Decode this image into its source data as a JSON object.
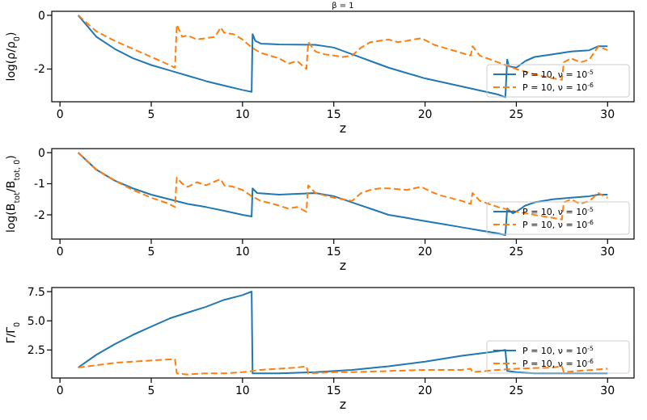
{
  "chart_data": [
    {
      "type": "line",
      "title": "β = 1",
      "xlabel": "z",
      "ylabel": "log(ρ/ρ$_{0}$)",
      "xlim": [
        -0.45,
        31.45
      ],
      "xticks": [
        0,
        5,
        10,
        15,
        20,
        25,
        30
      ],
      "ylim": [
        -3.22,
        0.15
      ],
      "yticks": [
        -2,
        0
      ],
      "legend": "lower right",
      "series": [
        {
          "name": "P = 10, ν = 10$^{-5}$",
          "color": "#1f77b4",
          "line_style": "solid",
          "x": [
            1,
            2,
            3,
            4,
            5,
            6,
            7,
            8,
            9,
            10,
            10.5,
            10.55,
            10.7,
            11,
            12,
            14,
            15,
            16,
            17,
            18,
            19,
            20,
            21,
            22,
            23,
            24,
            24.4,
            24.5,
            24.6,
            25,
            25.5,
            26,
            27,
            28,
            29,
            29.5,
            30
          ],
          "values": [
            0,
            -0.8,
            -1.25,
            -1.6,
            -1.85,
            -2.05,
            -2.25,
            -2.45,
            -2.62,
            -2.78,
            -2.85,
            -0.7,
            -0.95,
            -1.05,
            -1.08,
            -1.1,
            -1.2,
            -1.45,
            -1.7,
            -1.95,
            -2.15,
            -2.35,
            -2.5,
            -2.65,
            -2.8,
            -2.95,
            -3.05,
            -1.65,
            -1.9,
            -1.95,
            -1.7,
            -1.55,
            -1.45,
            -1.35,
            -1.3,
            -1.15,
            -1.15
          ]
        },
        {
          "name": "P = 10, ν = 10$^{-6}$",
          "color": "#ff7f0e",
          "line_style": "dashed",
          "x": [
            1,
            2,
            3,
            4,
            5,
            6,
            6.3,
            6.4,
            6.7,
            7,
            7.5,
            8,
            8.5,
            8.8,
            9,
            9.5,
            10,
            10.5,
            11,
            12,
            12.5,
            13,
            13.5,
            13.6,
            14,
            14.5,
            15,
            15.5,
            16,
            16.5,
            17,
            17.5,
            18,
            18.5,
            19,
            19.8,
            20.5,
            21,
            22,
            22.5,
            22.6,
            23,
            24,
            25,
            26,
            27,
            27.5,
            27.6,
            28,
            28.5,
            29,
            29.5,
            30
          ],
          "values": [
            0,
            -0.6,
            -0.95,
            -1.25,
            -1.55,
            -1.85,
            -1.95,
            -0.35,
            -0.8,
            -0.75,
            -0.9,
            -0.85,
            -0.8,
            -0.45,
            -0.65,
            -0.7,
            -0.9,
            -1.2,
            -1.4,
            -1.6,
            -1.8,
            -1.7,
            -2.0,
            -1.0,
            -1.35,
            -1.45,
            -1.5,
            -1.55,
            -1.5,
            -1.2,
            -1.0,
            -0.95,
            -0.9,
            -1.0,
            -0.95,
            -0.85,
            -1.1,
            -1.2,
            -1.4,
            -1.5,
            -1.15,
            -1.5,
            -1.75,
            -2.0,
            -2.2,
            -2.35,
            -2.4,
            -1.75,
            -1.6,
            -1.75,
            -1.65,
            -1.15,
            -1.3
          ]
        }
      ]
    },
    {
      "type": "line",
      "xlabel": "z",
      "ylabel": "log(B$_{tot}$/B$_{tot, 0}$)",
      "xlim": [
        -0.45,
        31.45
      ],
      "xticks": [
        0,
        5,
        10,
        15,
        20,
        25,
        30
      ],
      "ylim": [
        -2.78,
        0.13
      ],
      "yticks": [
        -2,
        -1,
        0
      ],
      "legend": "lower right",
      "series": [
        {
          "name": "P = 10, ν = 10$^{-5}$",
          "color": "#1f77b4",
          "line_style": "solid",
          "x": [
            1,
            2,
            3,
            4,
            5,
            6,
            7,
            8,
            9,
            10,
            10.5,
            10.55,
            10.8,
            12,
            14,
            15,
            16,
            17,
            18,
            19,
            20,
            21,
            22,
            23,
            24,
            24.4,
            24.5,
            24.8,
            25,
            25.5,
            26,
            27,
            28,
            29,
            29.5,
            30
          ],
          "values": [
            0,
            -0.55,
            -0.9,
            -1.15,
            -1.35,
            -1.5,
            -1.65,
            -1.75,
            -1.87,
            -2.0,
            -2.05,
            -1.15,
            -1.3,
            -1.35,
            -1.3,
            -1.4,
            -1.6,
            -1.8,
            -2.0,
            -2.1,
            -2.2,
            -2.3,
            -2.4,
            -2.5,
            -2.6,
            -2.65,
            -1.8,
            -1.95,
            -1.9,
            -1.7,
            -1.6,
            -1.5,
            -1.45,
            -1.4,
            -1.35,
            -1.35
          ]
        },
        {
          "name": "P = 10, ν = 10$^{-6}$",
          "color": "#ff7f0e",
          "line_style": "dashed",
          "x": [
            1,
            2,
            3,
            4,
            5,
            6,
            6.3,
            6.4,
            6.7,
            7,
            7.5,
            8,
            8.8,
            9,
            9.5,
            10,
            10.5,
            11,
            12,
            12.5,
            13,
            13.5,
            13.6,
            14,
            15,
            16,
            16.5,
            17,
            17.5,
            18,
            19,
            19.8,
            20.5,
            21,
            22,
            22.5,
            22.6,
            23,
            24,
            25,
            26,
            27,
            27.5,
            27.6,
            28,
            28.5,
            29,
            29.5,
            30
          ],
          "values": [
            0,
            -0.55,
            -0.9,
            -1.2,
            -1.45,
            -1.65,
            -1.75,
            -0.8,
            -1.0,
            -1.1,
            -0.95,
            -1.05,
            -0.85,
            -1.05,
            -1.1,
            -1.2,
            -1.4,
            -1.55,
            -1.7,
            -1.8,
            -1.75,
            -1.9,
            -1.05,
            -1.3,
            -1.45,
            -1.55,
            -1.3,
            -1.2,
            -1.15,
            -1.15,
            -1.2,
            -1.1,
            -1.3,
            -1.4,
            -1.55,
            -1.65,
            -1.3,
            -1.55,
            -1.75,
            -1.9,
            -2.0,
            -2.1,
            -2.15,
            -1.6,
            -1.5,
            -1.65,
            -1.55,
            -1.3,
            -1.45
          ]
        }
      ]
    },
    {
      "type": "line",
      "xlabel": "z",
      "ylabel": "Γ/Γ$_{0}$",
      "xlim": [
        -0.45,
        31.45
      ],
      "xticks": [
        0,
        5,
        10,
        15,
        20,
        25,
        30
      ],
      "ylim": [
        0.1,
        7.85
      ],
      "yticks": [
        {
          "value": 2.5,
          "label": "2.5"
        },
        {
          "value": 5,
          "label": "5.0"
        },
        {
          "value": 7.5,
          "label": "7.5"
        }
      ],
      "legend": "lower right",
      "series": [
        {
          "name": "P = 10, ν = 10$^{-5}$",
          "color": "#1f77b4",
          "line_style": "solid",
          "x": [
            1,
            2,
            3,
            4,
            5,
            6,
            7,
            8,
            9,
            10,
            10.5,
            10.55,
            12,
            14,
            16,
            18,
            20,
            22,
            24,
            24.4,
            24.5,
            25,
            26,
            28,
            30
          ],
          "values": [
            1,
            2.1,
            3.0,
            3.8,
            4.5,
            5.2,
            5.7,
            6.2,
            6.8,
            7.2,
            7.5,
            0.5,
            0.5,
            0.6,
            0.8,
            1.1,
            1.5,
            2.0,
            2.4,
            2.5,
            0.7,
            0.6,
            0.5,
            0.5,
            0.5
          ]
        },
        {
          "name": "P = 10, ν = 10$^{-6}$",
          "color": "#ff7f0e",
          "line_style": "dashed",
          "x": [
            1,
            2,
            3,
            4,
            5,
            6,
            6.3,
            6.4,
            7,
            8,
            9,
            10,
            11,
            12,
            13,
            13.5,
            13.6,
            15,
            16,
            18,
            20,
            22,
            22.5,
            22.6,
            24,
            25,
            27,
            27.5,
            27.6,
            30
          ],
          "values": [
            1,
            1.2,
            1.4,
            1.5,
            1.6,
            1.7,
            1.7,
            0.5,
            0.4,
            0.5,
            0.5,
            0.6,
            0.8,
            0.9,
            1.0,
            1.1,
            0.5,
            0.6,
            0.6,
            0.7,
            0.8,
            0.8,
            0.9,
            0.6,
            0.8,
            0.9,
            1.0,
            1.1,
            0.6,
            0.9
          ]
        }
      ]
    }
  ]
}
